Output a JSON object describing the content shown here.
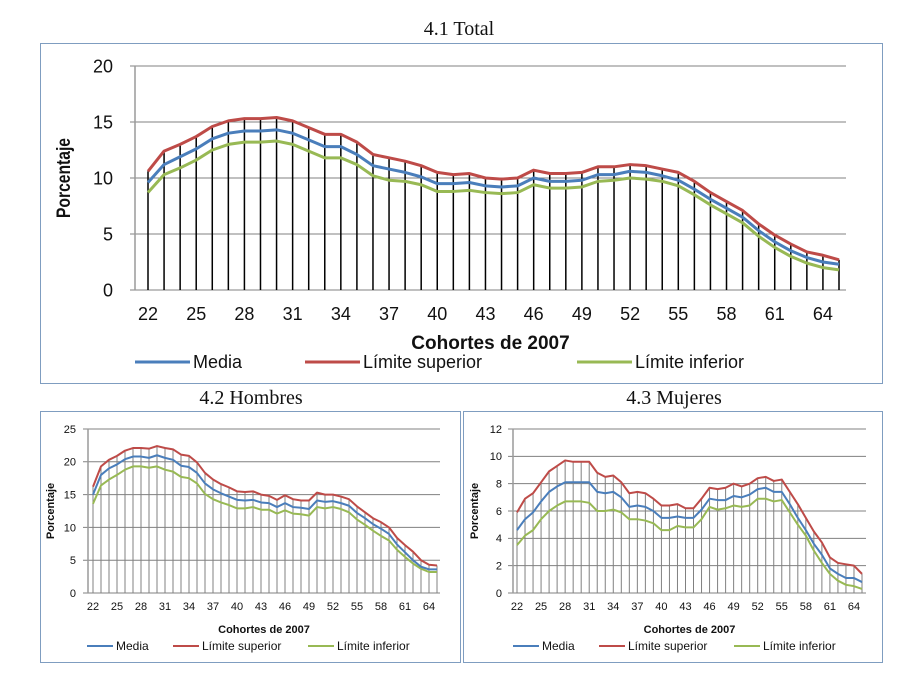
{
  "chart_data": [
    {
      "id": "total",
      "type": "line",
      "title": "4.1 Total",
      "xlabel": "Cohortes de 2007",
      "ylabel": "Porcentaje",
      "ylim": [
        0,
        20
      ],
      "yticks": [
        0,
        5,
        10,
        15,
        20
      ],
      "x": [
        22,
        23,
        24,
        25,
        26,
        27,
        28,
        29,
        30,
        31,
        32,
        33,
        34,
        35,
        36,
        37,
        38,
        39,
        40,
        41,
        42,
        43,
        44,
        45,
        46,
        47,
        48,
        49,
        50,
        51,
        52,
        53,
        54,
        55,
        56,
        57,
        58,
        59,
        60,
        61,
        62,
        63,
        64,
        65
      ],
      "xtick_labels": [
        "22",
        "25",
        "28",
        "31",
        "34",
        "37",
        "40",
        "43",
        "46",
        "49",
        "52",
        "55",
        "58",
        "61",
        "64"
      ],
      "grid": true,
      "legend": "bottom",
      "series": [
        {
          "name": "Media",
          "color": "#4a7ebb",
          "values": [
            9.6,
            11.2,
            11.9,
            12.6,
            13.5,
            14.0,
            14.2,
            14.2,
            14.3,
            14.0,
            13.4,
            12.8,
            12.8,
            12.1,
            11.1,
            10.8,
            10.5,
            10.1,
            9.5,
            9.5,
            9.6,
            9.3,
            9.2,
            9.3,
            10.0,
            9.7,
            9.7,
            9.8,
            10.3,
            10.3,
            10.6,
            10.5,
            10.2,
            9.8,
            9.0,
            8.1,
            7.3,
            6.5,
            5.3,
            4.3,
            3.5,
            2.9,
            2.5,
            2.3
          ]
        },
        {
          "name": "Límite superior",
          "color": "#be4b48",
          "values": [
            10.6,
            12.4,
            13.0,
            13.7,
            14.6,
            15.1,
            15.3,
            15.3,
            15.4,
            15.1,
            14.5,
            13.9,
            13.9,
            13.2,
            12.1,
            11.8,
            11.5,
            11.1,
            10.5,
            10.3,
            10.4,
            10.0,
            9.9,
            10.0,
            10.7,
            10.4,
            10.4,
            10.5,
            11.0,
            11.0,
            11.2,
            11.1,
            10.8,
            10.5,
            9.7,
            8.7,
            7.9,
            7.1,
            5.9,
            4.9,
            4.1,
            3.4,
            3.1,
            2.7
          ]
        },
        {
          "name": "Límite inferior",
          "color": "#98b954",
          "values": [
            8.7,
            10.3,
            10.9,
            11.6,
            12.5,
            13.0,
            13.2,
            13.2,
            13.3,
            13.0,
            12.4,
            11.8,
            11.8,
            11.2,
            10.2,
            9.8,
            9.7,
            9.4,
            8.8,
            8.8,
            8.9,
            8.7,
            8.6,
            8.7,
            9.4,
            9.1,
            9.1,
            9.2,
            9.7,
            9.8,
            10.0,
            9.9,
            9.7,
            9.3,
            8.5,
            7.6,
            6.8,
            6.0,
            4.8,
            3.8,
            3.0,
            2.4,
            2.0,
            1.8
          ]
        }
      ]
    },
    {
      "id": "hombres",
      "type": "line",
      "title": "4.2 Hombres",
      "xlabel": "Cohortes de 2007",
      "ylabel": "Porcentaje",
      "ylim": [
        0,
        25
      ],
      "yticks": [
        0,
        5,
        10,
        15,
        20,
        25
      ],
      "x": [
        22,
        23,
        24,
        25,
        26,
        27,
        28,
        29,
        30,
        31,
        32,
        33,
        34,
        35,
        36,
        37,
        38,
        39,
        40,
        41,
        42,
        43,
        44,
        45,
        46,
        47,
        48,
        49,
        50,
        51,
        52,
        53,
        54,
        55,
        56,
        57,
        58,
        59,
        60,
        61,
        62,
        63,
        64,
        65
      ],
      "xtick_labels": [
        "22",
        "25",
        "28",
        "31",
        "34",
        "37",
        "40",
        "43",
        "46",
        "49",
        "52",
        "55",
        "58",
        "61",
        "64"
      ],
      "grid": true,
      "legend": "bottom",
      "series": [
        {
          "name": "Media",
          "color": "#4a7ebb",
          "values": [
            15.0,
            18.0,
            19.0,
            19.6,
            20.4,
            20.8,
            20.8,
            20.6,
            21.0,
            20.6,
            20.3,
            19.4,
            19.2,
            18.3,
            16.7,
            15.8,
            15.2,
            14.7,
            14.2,
            14.1,
            14.2,
            13.8,
            13.7,
            13.1,
            13.7,
            13.1,
            13.0,
            12.8,
            14.1,
            13.9,
            14.0,
            13.7,
            13.3,
            12.2,
            11.4,
            10.5,
            9.8,
            9.0,
            7.4,
            6.2,
            5.0,
            4.0,
            3.6,
            3.6
          ]
        },
        {
          "name": "Límite superior",
          "color": "#be4b48",
          "values": [
            16.2,
            19.3,
            20.3,
            20.9,
            21.7,
            22.1,
            22.1,
            22.0,
            22.4,
            22.1,
            21.9,
            21.1,
            20.9,
            19.9,
            18.3,
            17.3,
            16.6,
            16.1,
            15.5,
            15.4,
            15.5,
            15.0,
            14.8,
            14.2,
            14.9,
            14.3,
            14.1,
            14.1,
            15.3,
            15.0,
            15.0,
            14.7,
            14.3,
            13.2,
            12.3,
            11.4,
            10.8,
            10.0,
            8.4,
            7.3,
            6.3,
            5.0,
            4.3,
            4.2
          ]
        },
        {
          "name": "Límite inferior",
          "color": "#98b954",
          "values": [
            13.6,
            16.4,
            17.3,
            18.0,
            18.8,
            19.3,
            19.3,
            19.1,
            19.3,
            18.8,
            18.5,
            17.7,
            17.5,
            16.7,
            15.1,
            14.3,
            13.8,
            13.4,
            12.9,
            12.9,
            13.1,
            12.7,
            12.7,
            12.1,
            12.6,
            12.1,
            12.0,
            11.8,
            13.1,
            12.9,
            13.1,
            12.8,
            12.3,
            11.2,
            10.4,
            9.5,
            8.7,
            8.0,
            6.6,
            5.5,
            4.5,
            3.7,
            3.2,
            3.2
          ]
        }
      ]
    },
    {
      "id": "mujeres",
      "type": "line",
      "title": "4.3 Mujeres",
      "xlabel": "Cohortes de 2007",
      "ylabel": "Porcentaje",
      "ylim": [
        0,
        12
      ],
      "yticks": [
        0,
        2,
        4,
        6,
        8,
        10,
        12
      ],
      "x": [
        22,
        23,
        24,
        25,
        26,
        27,
        28,
        29,
        30,
        31,
        32,
        33,
        34,
        35,
        36,
        37,
        38,
        39,
        40,
        41,
        42,
        43,
        44,
        45,
        46,
        47,
        48,
        49,
        50,
        51,
        52,
        53,
        54,
        55,
        56,
        57,
        58,
        59,
        60,
        61,
        62,
        63,
        64,
        65
      ],
      "xtick_labels": [
        "22",
        "25",
        "28",
        "31",
        "34",
        "37",
        "40",
        "43",
        "46",
        "49",
        "52",
        "55",
        "58",
        "61",
        "64"
      ],
      "grid": true,
      "legend": "bottom",
      "series": [
        {
          "name": "Media",
          "color": "#4a7ebb",
          "values": [
            4.6,
            5.4,
            5.9,
            6.7,
            7.4,
            7.8,
            8.1,
            8.1,
            8.1,
            8.1,
            7.4,
            7.3,
            7.4,
            7.0,
            6.3,
            6.4,
            6.3,
            6.0,
            5.5,
            5.5,
            5.6,
            5.5,
            5.5,
            6.1,
            6.9,
            6.8,
            6.8,
            7.1,
            7.0,
            7.2,
            7.6,
            7.7,
            7.4,
            7.4,
            6.5,
            5.5,
            4.6,
            3.6,
            2.8,
            1.8,
            1.4,
            1.1,
            1.1,
            0.8
          ]
        },
        {
          "name": "Límite superior",
          "color": "#be4b48",
          "values": [
            5.9,
            6.9,
            7.3,
            8.1,
            8.9,
            9.3,
            9.7,
            9.6,
            9.6,
            9.6,
            8.8,
            8.5,
            8.6,
            8.1,
            7.3,
            7.4,
            7.3,
            6.9,
            6.4,
            6.4,
            6.5,
            6.2,
            6.2,
            6.9,
            7.7,
            7.6,
            7.7,
            8.0,
            7.8,
            8.0,
            8.4,
            8.5,
            8.2,
            8.3,
            7.4,
            6.5,
            5.5,
            4.5,
            3.7,
            2.6,
            2.2,
            2.1,
            2.0,
            1.4
          ]
        },
        {
          "name": "Límite inferior",
          "color": "#98b954",
          "values": [
            3.5,
            4.2,
            4.6,
            5.4,
            6.0,
            6.4,
            6.7,
            6.7,
            6.7,
            6.6,
            6.0,
            6.0,
            6.1,
            5.9,
            5.4,
            5.4,
            5.3,
            5.1,
            4.6,
            4.6,
            4.9,
            4.8,
            4.8,
            5.4,
            6.3,
            6.1,
            6.2,
            6.4,
            6.3,
            6.4,
            6.9,
            6.9,
            6.7,
            6.8,
            5.9,
            5.0,
            4.2,
            3.1,
            2.2,
            1.4,
            0.9,
            0.6,
            0.5,
            0.3
          ]
        }
      ]
    }
  ]
}
